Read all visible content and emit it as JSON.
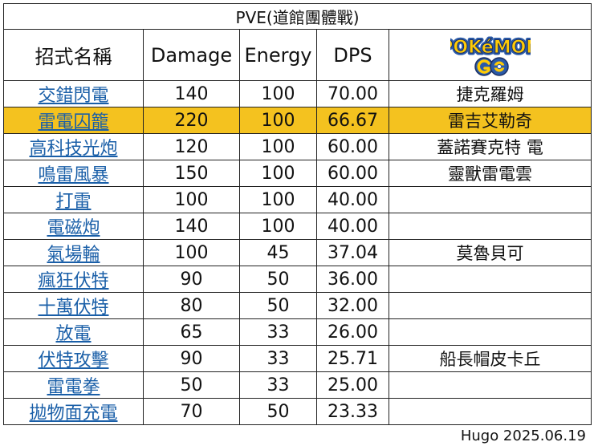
{
  "title": "PVE(道館團體戰)",
  "headers": {
    "move": "招式名稱",
    "damage": "Damage",
    "energy": "Energy",
    "dps": "DPS"
  },
  "logo": {
    "icon": "pokemon-go-logo",
    "colors": {
      "yellow": "#ffcb05",
      "blue": "#2a5aa8",
      "dark": "#1b2f63"
    }
  },
  "rows": [
    {
      "move": "交錯閃電",
      "damage": "140",
      "energy": "100",
      "dps": "70.00",
      "pokemon": "捷克羅姆"
    },
    {
      "move": "雷電囚籠",
      "damage": "220",
      "energy": "100",
      "dps": "66.67",
      "pokemon": "雷吉艾勒奇",
      "highlight": true
    },
    {
      "move": "高科技光炮",
      "damage": "120",
      "energy": "100",
      "dps": "60.00",
      "pokemon": "蓋諾賽克特 電"
    },
    {
      "move": "鳴雷風暴",
      "damage": "150",
      "energy": "100",
      "dps": "60.00",
      "pokemon": "靈獸雷電雲"
    },
    {
      "move": "打雷",
      "damage": "100",
      "energy": "100",
      "dps": "40.00",
      "pokemon": ""
    },
    {
      "move": "電磁炮",
      "damage": "140",
      "energy": "100",
      "dps": "40.00",
      "pokemon": ""
    },
    {
      "move": "氣場輪",
      "damage": "100",
      "energy": "45",
      "dps": "37.04",
      "pokemon": "莫魯貝可"
    },
    {
      "move": "瘋狂伏特",
      "damage": "90",
      "energy": "50",
      "dps": "36.00",
      "pokemon": ""
    },
    {
      "move": "十萬伏特",
      "damage": "80",
      "energy": "50",
      "dps": "32.00",
      "pokemon": ""
    },
    {
      "move": "放電",
      "damage": "65",
      "energy": "33",
      "dps": "26.00",
      "pokemon": ""
    },
    {
      "move": "伏特攻擊",
      "damage": "90",
      "energy": "33",
      "dps": "25.71",
      "pokemon": "船長帽皮卡丘"
    },
    {
      "move": "雷電拳",
      "damage": "50",
      "energy": "33",
      "dps": "25.00",
      "pokemon": ""
    },
    {
      "move": "拋物面充電",
      "damage": "70",
      "energy": "50",
      "dps": "23.33",
      "pokemon": ""
    }
  ],
  "highlight_color": "#f4c21f",
  "link_color": "#1a5fa8",
  "footer": "Hugo 2025.06.19"
}
